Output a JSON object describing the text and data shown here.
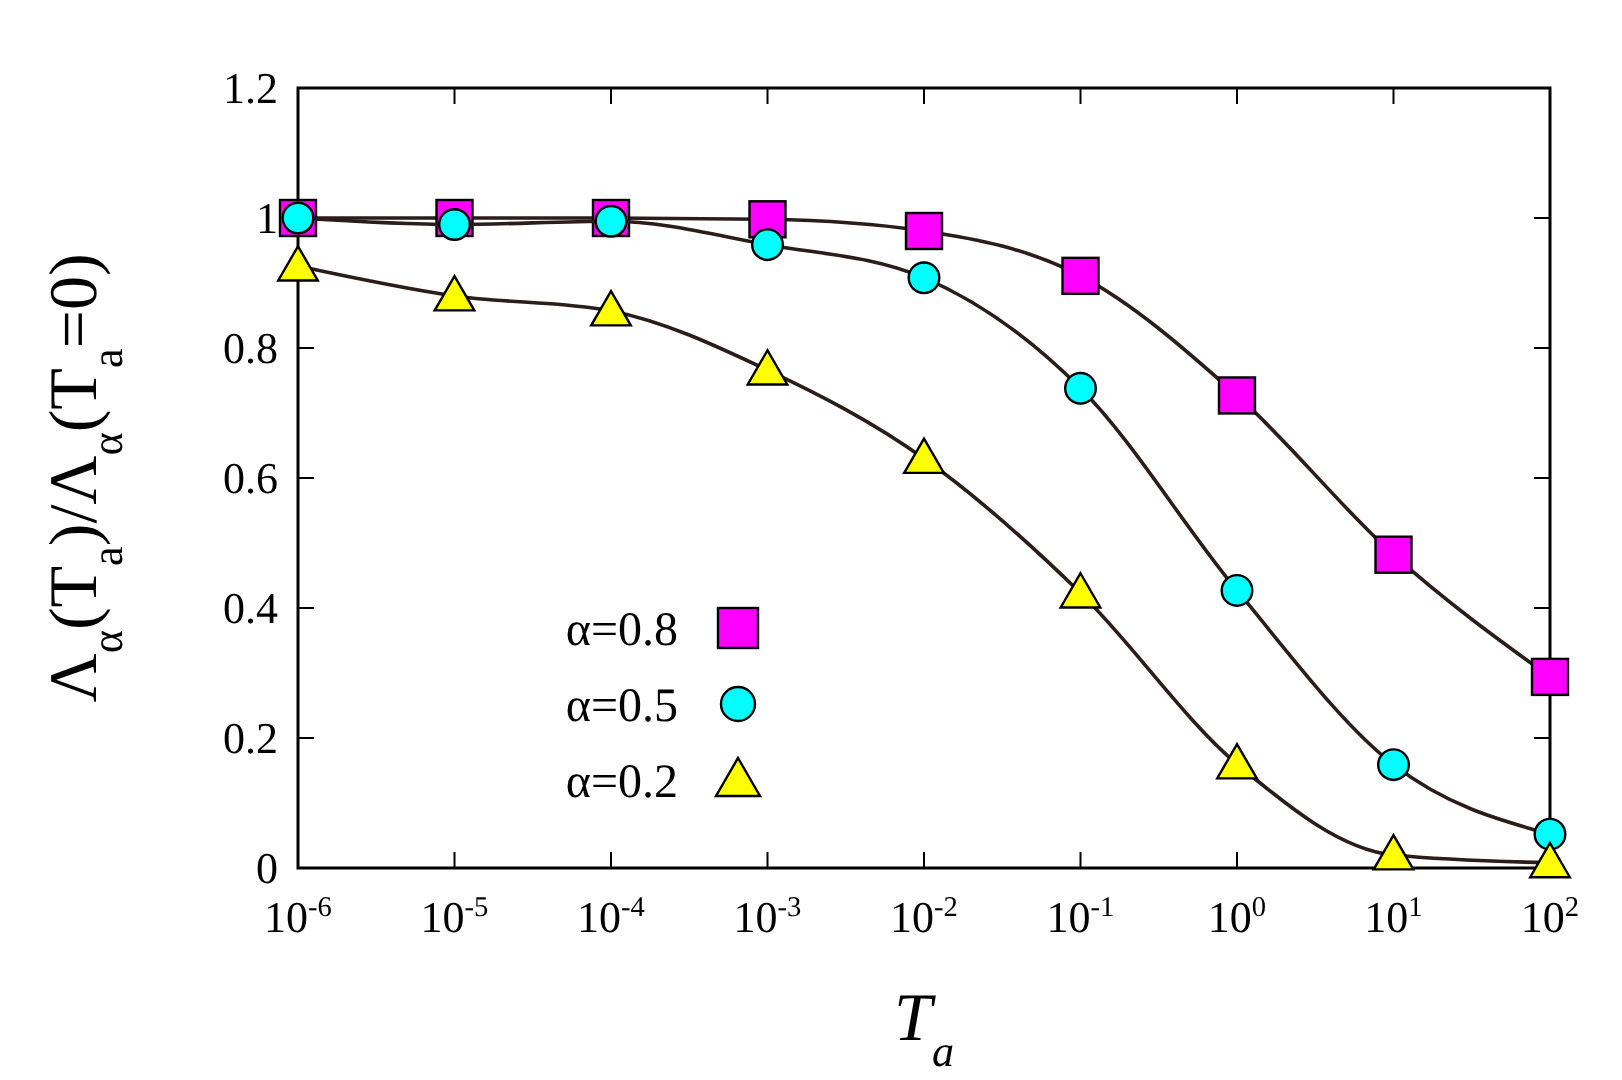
{
  "chart_data": {
    "type": "line",
    "xlabel": "T$_{a}$",
    "ylabel": "Λ$_{α}$(T$_{a}$)/Λ$_{α}$(T$_{a}$=0)",
    "x": [
      1e-06,
      1e-05,
      0.0001,
      0.001,
      0.01,
      0.1,
      1,
      10,
      100
    ],
    "series": [
      {
        "name": "α=0.8",
        "color": "#ff00ff",
        "marker": "square",
        "values": [
          1.0,
          1.0,
          1.0,
          0.998,
          0.98,
          0.911,
          0.727,
          0.482,
          0.294
        ]
      },
      {
        "name": "α=0.5",
        "color": "#00ffff",
        "marker": "circle",
        "values": [
          1.0,
          0.99,
          0.995,
          0.959,
          0.908,
          0.738,
          0.427,
          0.159,
          0.052
        ]
      },
      {
        "name": "α=0.2",
        "color": "#ffff00",
        "marker": "triangle",
        "values": [
          0.926,
          0.88,
          0.857,
          0.766,
          0.63,
          0.423,
          0.16,
          0.02,
          0.008
        ]
      }
    ],
    "log": "x",
    "xlim": [
      1e-06,
      100
    ],
    "xticks": [
      {
        "value": 1e-06,
        "label": "10$^{-6}$"
      },
      {
        "value": 1e-05,
        "label": "10$^{-5}$"
      },
      {
        "value": 0.0001,
        "label": "10$^{-4}$"
      },
      {
        "value": 0.001,
        "label": "10$^{-3}$"
      },
      {
        "value": 0.01,
        "label": "10$^{-2}$"
      },
      {
        "value": 0.1,
        "label": "10$^{-1}$"
      },
      {
        "value": 1,
        "label": "10$^{0}$"
      },
      {
        "value": 10,
        "label": "10$^{1}$"
      },
      {
        "value": 100,
        "label": "10$^{2}$"
      }
    ],
    "ylim": [
      0,
      1.2
    ],
    "yticks": [
      0,
      0.2,
      0.4,
      0.6,
      0.8,
      1,
      1.2
    ],
    "grid": false,
    "legend": "bottom left",
    "line_style": "solid"
  }
}
